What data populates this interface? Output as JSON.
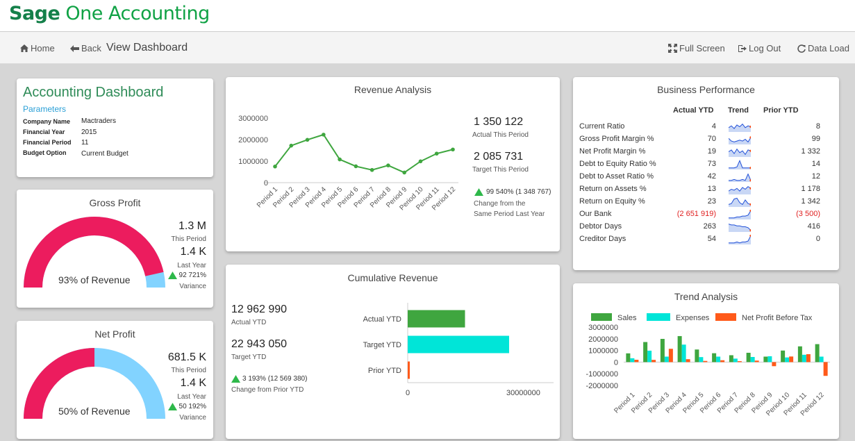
{
  "brand": {
    "prefix": "Sage",
    "suffix": "One Accounting"
  },
  "nav": {
    "home": "Home",
    "back": "Back",
    "title": "View Dashboard",
    "fullscreen": "Full Screen",
    "logout": "Log Out",
    "dataload": "Data Load"
  },
  "accounting": {
    "title": "Accounting Dashboard",
    "params_label": "Parameters",
    "params": [
      {
        "label": "Company Name",
        "value": "Mactraders"
      },
      {
        "label": "Financial Year",
        "value": "2015"
      },
      {
        "label": "Financial Period",
        "value": "11"
      },
      {
        "label": "Budget Option",
        "value": "Current Budget"
      }
    ]
  },
  "gross_profit": {
    "title": "Gross Profit",
    "this_period": "1.3 M",
    "this_period_label": "This Period",
    "last_year": "1.4 K",
    "last_year_label": "Last Year",
    "variance": "92 721%",
    "variance_label": "Variance",
    "gauge_text": "93% of Revenue",
    "gauge_fraction": 0.93
  },
  "net_profit": {
    "title": "Net Profit",
    "this_period": "681.5 K",
    "this_period_label": "This Period",
    "last_year": "1.4 K",
    "last_year_label": "Last Year",
    "variance": "50 192%",
    "variance_label": "Variance",
    "gauge_text": "50% of Revenue",
    "gauge_fraction": 0.5
  },
  "revenue": {
    "title": "Revenue Analysis",
    "actual": "1 350 122",
    "actual_label": "Actual This Period",
    "target": "2 085 731",
    "target_label": "Target This Period",
    "change": "99 540% (1 348 767)",
    "change_label1": "Change from the",
    "change_label2": "Same Period Last Year"
  },
  "cumulative": {
    "title": "Cumulative Revenue",
    "actual": "12 962 990",
    "actual_label": "Actual YTD",
    "target": "22 943 050",
    "target_label": "Target YTD",
    "change": "3 193% (12 569 380)",
    "change_label": "Change from Prior YTD"
  },
  "business": {
    "title": "Business Performance",
    "headers": [
      "Actual YTD",
      "Trend",
      "Prior YTD"
    ],
    "rows": [
      {
        "name": "Current Ratio",
        "actual": "4",
        "prior": "8"
      },
      {
        "name": "Gross Profit Margin %",
        "actual": "70",
        "prior": "99"
      },
      {
        "name": "Net Profit Margin %",
        "actual": "19",
        "prior": "1 332"
      },
      {
        "name": "Debt to Equity Ratio %",
        "actual": "73",
        "prior": "14"
      },
      {
        "name": "Debt to Asset Ratio %",
        "actual": "42",
        "prior": "12"
      },
      {
        "name": "Return on Assets %",
        "actual": "13",
        "prior": "1 178"
      },
      {
        "name": "Return on Equity %",
        "actual": "23",
        "prior": "1 342"
      },
      {
        "name": "Our Bank",
        "actual": "(2 651 919)",
        "prior": "(3 500)"
      },
      {
        "name": "Debtor Days",
        "actual": "263",
        "prior": "416"
      },
      {
        "name": "Creditor Days",
        "actual": "54",
        "prior": "0"
      }
    ]
  },
  "trend": {
    "title": "Trend Analysis"
  },
  "colors": {
    "green": "#3fa63f",
    "cyan": "#00e5d8",
    "orange": "#ff5a1a",
    "pink": "#ec1c5e",
    "lightblue": "#82d3ff",
    "brand": "#10a245"
  },
  "chart_data": [
    {
      "type": "line",
      "title": "Revenue Analysis",
      "categories": [
        "Period 1",
        "Period 2",
        "Period 3",
        "Period 4",
        "Period 5",
        "Period 6",
        "Period 7",
        "Period 8",
        "Period 9",
        "Period 10",
        "Period 11",
        "Period 12"
      ],
      "values": [
        750000,
        1720000,
        1990000,
        2230000,
        1080000,
        760000,
        590000,
        800000,
        470000,
        990000,
        1350000,
        1540000
      ],
      "yticks": [
        "3000000",
        "2000000",
        "1000000",
        "0"
      ],
      "ylim": [
        0,
        3000000
      ]
    },
    {
      "type": "bar",
      "title": "Cumulative Revenue",
      "orientation": "horizontal",
      "categories": [
        "Actual YTD",
        "Target YTD",
        "Prior YTD"
      ],
      "values": [
        12962990,
        22943050,
        393610
      ],
      "xticks": [
        "0",
        "30000000"
      ],
      "xlim": [
        0,
        33000000
      ]
    },
    {
      "type": "bar",
      "title": "Trend Analysis",
      "categories": [
        "Period 1",
        "Period 2",
        "Period 3",
        "Period 4",
        "Period 5",
        "Period 6",
        "Period 7",
        "Period 8",
        "Period 9",
        "Period 10",
        "Period 11",
        "Period 12"
      ],
      "yticks": [
        "3000000",
        "2000000",
        "1000000",
        "0",
        "-1000000",
        "-2000000"
      ],
      "ylim": [
        -2000000,
        3000000
      ],
      "series": [
        {
          "name": "Sales",
          "values": [
            750000,
            1720000,
            1990000,
            2230000,
            1080000,
            760000,
            590000,
            800000,
            470000,
            990000,
            1350000,
            1540000
          ]
        },
        {
          "name": "Expenses",
          "values": [
            330000,
            980000,
            470000,
            1500000,
            430000,
            470000,
            300000,
            440000,
            500000,
            400000,
            630000,
            470000
          ]
        },
        {
          "name": "Net Profit Before Tax",
          "values": [
            200000,
            190000,
            1140000,
            250000,
            100000,
            160000,
            80000,
            130000,
            -350000,
            480000,
            680000,
            -1180000
          ]
        }
      ]
    }
  ]
}
